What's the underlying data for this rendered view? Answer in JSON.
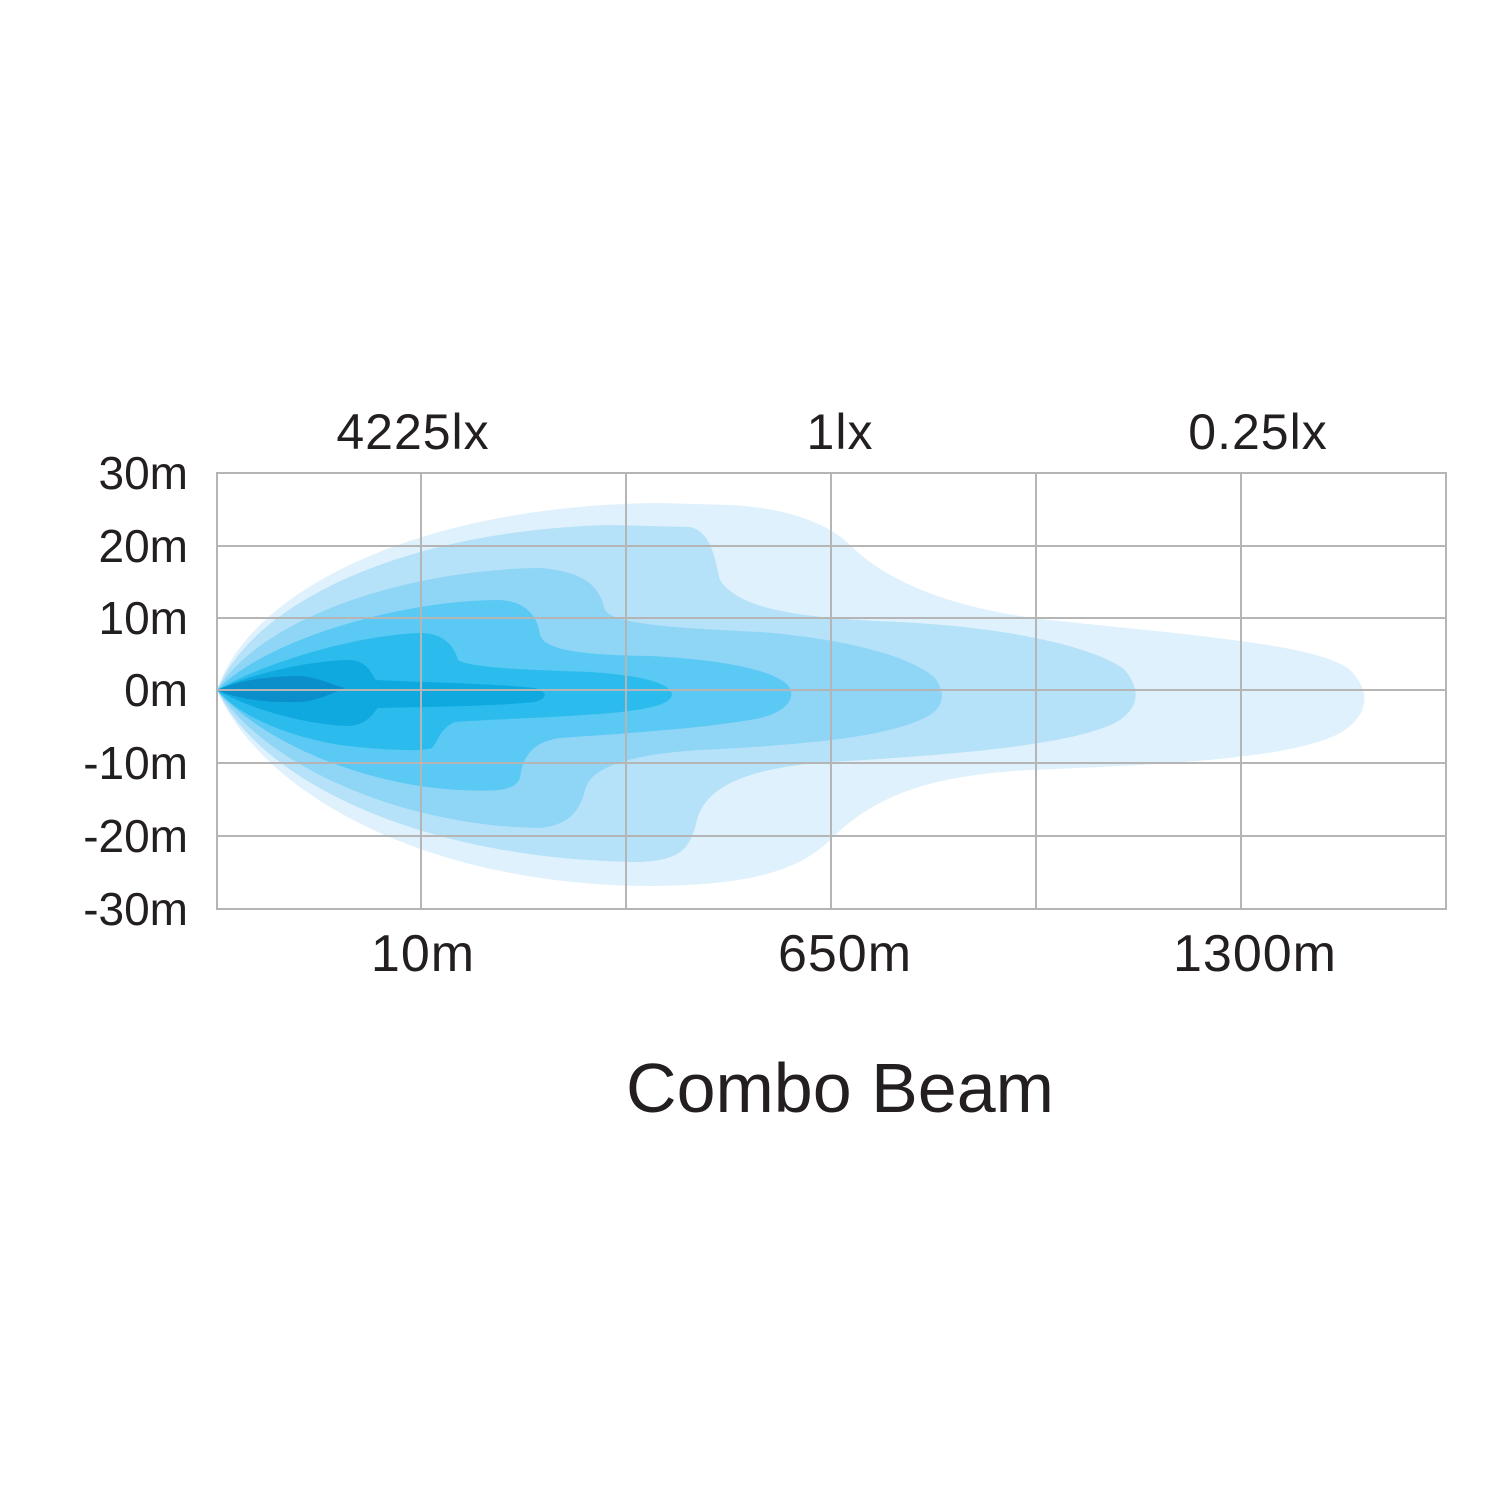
{
  "chart_data": {
    "type": "area",
    "title": "Combo Beam",
    "y_ticks": [
      "30m",
      "20m",
      "10m",
      "0m",
      "-10m",
      "-20m",
      "-30m"
    ],
    "x_ticks": [
      "10m",
      "650m",
      "1300m"
    ],
    "lux_labels": [
      "4225lx",
      "1lx",
      "0.25lx"
    ],
    "ylim": [
      -30,
      30
    ],
    "grid": true,
    "grid_columns": 6,
    "series": [
      {
        "color": "#dff1fc"
      },
      {
        "color": "#b5e2f8"
      },
      {
        "color": "#8fd5f6"
      },
      {
        "color": "#5ac9f3"
      },
      {
        "color": "#2bbced"
      },
      {
        "color": "#0fa9e0"
      },
      {
        "color": "#0a8fca"
      }
    ]
  }
}
